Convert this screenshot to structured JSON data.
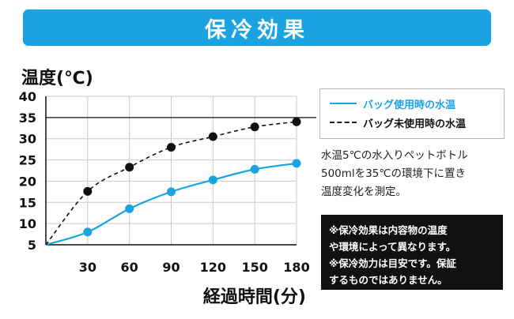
{
  "banner": {
    "title": "保冷効果"
  },
  "legend": {
    "with_bag": "バッグ使用時の水温",
    "without_bag": "バッグ未使用時の水温"
  },
  "description": {
    "lines": [
      "水温5℃の水入りペットボトル",
      "500mlを35℃の環境下に置き",
      "温度変化を測定。"
    ]
  },
  "note": {
    "lines": [
      "※保冷効果は内容物の温度",
      "や環境によって異なります。",
      "※保冷効力は目安です。保証",
      "するものではありません。"
    ]
  },
  "colors": {
    "accent": "#1aa3e0",
    "dark": "#111111"
  },
  "chart_data": {
    "type": "line",
    "ylabel": "温度(℃)",
    "xlabel": "経過時間(分)",
    "xlim": [
      0,
      180
    ],
    "ylim": [
      5,
      40
    ],
    "x_ticks": [
      30,
      60,
      90,
      120,
      150,
      180
    ],
    "y_ticks": [
      5,
      10,
      15,
      20,
      25,
      30,
      35,
      40
    ],
    "reference_line": 35,
    "grid": true,
    "series": [
      {
        "name": "バッグ使用時の水温",
        "style": "solid",
        "color": "#1aa3e0",
        "x": [
          0,
          30,
          60,
          90,
          120,
          150,
          180
        ],
        "y": [
          5,
          8,
          13.5,
          17.5,
          20.3,
          22.8,
          24.2
        ]
      },
      {
        "name": "バッグ未使用時の水温",
        "style": "dashed",
        "color": "#111111",
        "x": [
          0,
          30,
          60,
          90,
          120,
          150,
          180
        ],
        "y": [
          5,
          17.6,
          23.3,
          28,
          30.5,
          32.8,
          34
        ]
      }
    ]
  }
}
